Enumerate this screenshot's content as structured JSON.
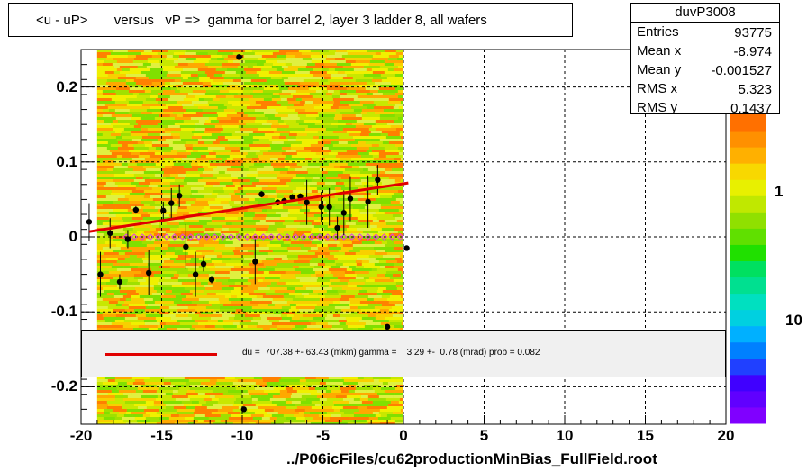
{
  "title": "<u - uP>       versus   vP =>  gamma for barrel 2, layer 3 ladder 8, all wafers",
  "stats": {
    "name": "duvP3008",
    "rows": [
      {
        "key": "Entries",
        "value": "93775"
      },
      {
        "key": "Mean x",
        "value": "-8.974"
      },
      {
        "key": "Mean y",
        "value": "-0.001527"
      },
      {
        "key": "RMS x",
        "value": "5.323"
      },
      {
        "key": "RMS y",
        "value": "0.1437"
      }
    ]
  },
  "fit_text": "du =  707.38 +- 63.43 (mkm) gamma =    3.29 +-  0.78 (mrad) prob = 0.082",
  "xlabel": "../P06icFiles/cu62productionMinBias_FullField.root",
  "colors": {
    "fit_line": "#e00000",
    "points": "#000000",
    "open_markers": "#e040e0"
  },
  "chart_data": {
    "type": "scatter",
    "xlim": [
      -20,
      20
    ],
    "ylim": [
      -0.25,
      0.25
    ],
    "x_ticks": [
      {
        "v": -20,
        "label": "-20"
      },
      {
        "v": -15,
        "label": "-15"
      },
      {
        "v": -10,
        "label": "-10"
      },
      {
        "v": -5,
        "label": "-5"
      },
      {
        "v": 0,
        "label": "0"
      },
      {
        "v": 5,
        "label": "5"
      },
      {
        "v": 10,
        "label": "10"
      },
      {
        "v": 15,
        "label": "15"
      },
      {
        "v": 20,
        "label": "20"
      }
    ],
    "y_ticks": [
      {
        "v": -0.2,
        "label": "-0.2"
      },
      {
        "v": -0.1,
        "label": "-0.1"
      },
      {
        "v": 0,
        "label": "0"
      },
      {
        "v": 0.1,
        "label": "0.1"
      },
      {
        "v": 0.2,
        "label": "0.2"
      }
    ],
    "z_ticks": [
      {
        "label": "1"
      },
      {
        "label": "10"
      }
    ],
    "grid": true,
    "log_z": true,
    "heatmap_xrange": [
      -19,
      0
    ],
    "fit_line": {
      "x": [
        -19.5,
        0.3
      ],
      "y": [
        0.007,
        0.072
      ]
    },
    "profile_points": [
      {
        "x": -19.5,
        "y": 0.02,
        "err": 0.025
      },
      {
        "x": -18.8,
        "y": -0.05,
        "err": 0.03
      },
      {
        "x": -18.2,
        "y": 0.005,
        "err": 0.02
      },
      {
        "x": -17.6,
        "y": -0.06,
        "err": 0.01
      },
      {
        "x": -17.1,
        "y": -0.003,
        "err": 0.012
      },
      {
        "x": -16.6,
        "y": 0.036,
        "err": 0.005
      },
      {
        "x": -15.8,
        "y": -0.048,
        "err": 0.03
      },
      {
        "x": -14.9,
        "y": 0.035,
        "err": 0.012
      },
      {
        "x": -14.4,
        "y": 0.045,
        "err": 0.02
      },
      {
        "x": -13.9,
        "y": 0.055,
        "err": 0.015
      },
      {
        "x": -13.5,
        "y": -0.013,
        "err": 0.03
      },
      {
        "x": -12.9,
        "y": -0.05,
        "err": 0.03
      },
      {
        "x": -12.4,
        "y": -0.036,
        "err": 0.01
      },
      {
        "x": -11.9,
        "y": -0.057,
        "err": 0.005
      },
      {
        "x": -10.2,
        "y": 0.24,
        "err": 0.003
      },
      {
        "x": -9.9,
        "y": -0.23,
        "err": 0.003
      },
      {
        "x": -9.2,
        "y": -0.033,
        "err": 0.03
      },
      {
        "x": -8.8,
        "y": 0.057,
        "err": 0.004
      },
      {
        "x": -7.8,
        "y": 0.046,
        "err": 0.004
      },
      {
        "x": -7.4,
        "y": 0.048,
        "err": 0.004
      },
      {
        "x": -6.9,
        "y": 0.053,
        "err": 0.004
      },
      {
        "x": -6.4,
        "y": 0.054,
        "err": 0.004
      },
      {
        "x": -6.0,
        "y": 0.046,
        "err": 0.03
      },
      {
        "x": -5.1,
        "y": 0.04,
        "err": 0.02
      },
      {
        "x": -4.6,
        "y": 0.04,
        "err": 0.025
      },
      {
        "x": -4.1,
        "y": 0.012,
        "err": 0.015
      },
      {
        "x": -3.7,
        "y": 0.032,
        "err": 0.03
      },
      {
        "x": -3.3,
        "y": 0.051,
        "err": 0.03
      },
      {
        "x": -2.2,
        "y": 0.047,
        "err": 0.035
      },
      {
        "x": -1.6,
        "y": 0.076,
        "err": 0.02
      },
      {
        "x": -1.0,
        "y": -0.12,
        "err": 0.003
      },
      {
        "x": 0.2,
        "y": -0.015,
        "err": 0.003
      }
    ],
    "open_points_y": 0.0,
    "open_points_x": [
      -17.2,
      -16.7,
      -16.2,
      -15.7,
      -15.2,
      -14.7,
      -14.2,
      -13.7,
      -13.2,
      -12.7,
      -12.2,
      -11.7,
      -11.2,
      -10.7,
      -10.2,
      -9.7,
      -9.2,
      -8.7,
      -8.2,
      -7.7,
      -7.2,
      -6.7,
      -6.2,
      -5.7,
      -5.2,
      -4.7,
      -4.2,
      -3.7,
      -3.2,
      -2.7,
      -2.2,
      -1.7,
      -1.2,
      -0.7,
      -0.2
    ]
  }
}
